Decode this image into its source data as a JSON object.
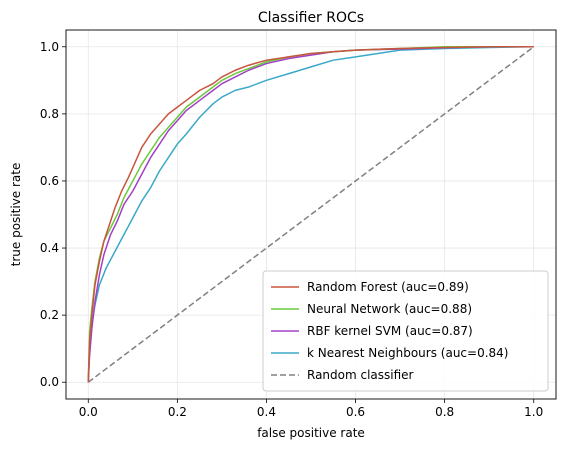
{
  "chart_data": {
    "type": "line",
    "title": "Classifier ROCs",
    "xlabel": "false positive rate",
    "ylabel": "true positive rate",
    "xlim": [
      -0.05,
      1.05
    ],
    "ylim": [
      -0.05,
      1.05
    ],
    "xticks": [
      "0.0",
      "0.2",
      "0.4",
      "0.6",
      "0.8",
      "1.0"
    ],
    "yticks": [
      "0.0",
      "0.2",
      "0.4",
      "0.6",
      "0.8",
      "1.0"
    ],
    "grid": true,
    "legend_position": "bottom-right",
    "series": [
      {
        "name": "Random Forest (auc=0.89)",
        "color": "#c8553d",
        "style": "solid",
        "x": [
          0,
          0.003,
          0.008,
          0.015,
          0.025,
          0.035,
          0.05,
          0.06,
          0.075,
          0.09,
          0.1,
          0.12,
          0.14,
          0.16,
          0.18,
          0.2,
          0.22,
          0.25,
          0.28,
          0.3,
          0.33,
          0.36,
          0.4,
          0.45,
          0.5,
          0.55,
          0.6,
          0.7,
          0.8,
          0.9,
          1.0
        ],
        "y": [
          0,
          0.12,
          0.2,
          0.29,
          0.36,
          0.42,
          0.48,
          0.52,
          0.57,
          0.61,
          0.64,
          0.7,
          0.74,
          0.77,
          0.8,
          0.82,
          0.84,
          0.87,
          0.89,
          0.91,
          0.93,
          0.945,
          0.96,
          0.97,
          0.98,
          0.985,
          0.99,
          0.995,
          0.998,
          1.0,
          1.0
        ]
      },
      {
        "name": "Neural Network (auc=0.88)",
        "color": "#6ac93a",
        "style": "solid",
        "x": [
          0,
          0.003,
          0.008,
          0.015,
          0.025,
          0.035,
          0.05,
          0.065,
          0.08,
          0.1,
          0.12,
          0.14,
          0.16,
          0.18,
          0.2,
          0.22,
          0.25,
          0.28,
          0.3,
          0.33,
          0.36,
          0.4,
          0.45,
          0.5,
          0.55,
          0.6,
          0.7,
          0.8,
          0.9,
          1.0
        ],
        "y": [
          0,
          0.15,
          0.22,
          0.3,
          0.37,
          0.42,
          0.46,
          0.5,
          0.55,
          0.6,
          0.65,
          0.69,
          0.73,
          0.76,
          0.79,
          0.82,
          0.85,
          0.88,
          0.9,
          0.92,
          0.935,
          0.955,
          0.97,
          0.98,
          0.985,
          0.99,
          0.995,
          1.0,
          1.0,
          1.0
        ]
      },
      {
        "name": "RBF kernel SVM (auc=0.87)",
        "color": "#a340c7",
        "style": "solid",
        "x": [
          0,
          0.003,
          0.008,
          0.015,
          0.025,
          0.035,
          0.05,
          0.065,
          0.08,
          0.1,
          0.12,
          0.14,
          0.16,
          0.18,
          0.2,
          0.22,
          0.25,
          0.28,
          0.3,
          0.33,
          0.36,
          0.4,
          0.45,
          0.5,
          0.55,
          0.6,
          0.7,
          0.8,
          0.9,
          1.0
        ],
        "y": [
          0,
          0.08,
          0.16,
          0.24,
          0.32,
          0.38,
          0.44,
          0.48,
          0.53,
          0.57,
          0.62,
          0.67,
          0.71,
          0.75,
          0.78,
          0.81,
          0.84,
          0.87,
          0.89,
          0.91,
          0.93,
          0.95,
          0.965,
          0.975,
          0.985,
          0.99,
          0.993,
          0.997,
          1.0,
          1.0
        ]
      },
      {
        "name": "k Nearest Neighbours (auc=0.84)",
        "color": "#3aa9c7",
        "style": "solid",
        "x": [
          0,
          0.003,
          0.008,
          0.015,
          0.025,
          0.04,
          0.06,
          0.08,
          0.1,
          0.12,
          0.14,
          0.16,
          0.18,
          0.2,
          0.22,
          0.25,
          0.28,
          0.3,
          0.33,
          0.36,
          0.4,
          0.45,
          0.5,
          0.55,
          0.6,
          0.65,
          0.7,
          0.8,
          0.9,
          1.0
        ],
        "y": [
          0,
          0.1,
          0.17,
          0.23,
          0.29,
          0.34,
          0.39,
          0.44,
          0.49,
          0.54,
          0.58,
          0.63,
          0.67,
          0.71,
          0.74,
          0.79,
          0.83,
          0.85,
          0.87,
          0.88,
          0.9,
          0.92,
          0.94,
          0.96,
          0.97,
          0.98,
          0.99,
          0.995,
          0.998,
          1.0
        ]
      },
      {
        "name": "Random classifier",
        "color": "#808080",
        "style": "dashed",
        "x": [
          0,
          1
        ],
        "y": [
          0,
          1
        ]
      }
    ]
  }
}
